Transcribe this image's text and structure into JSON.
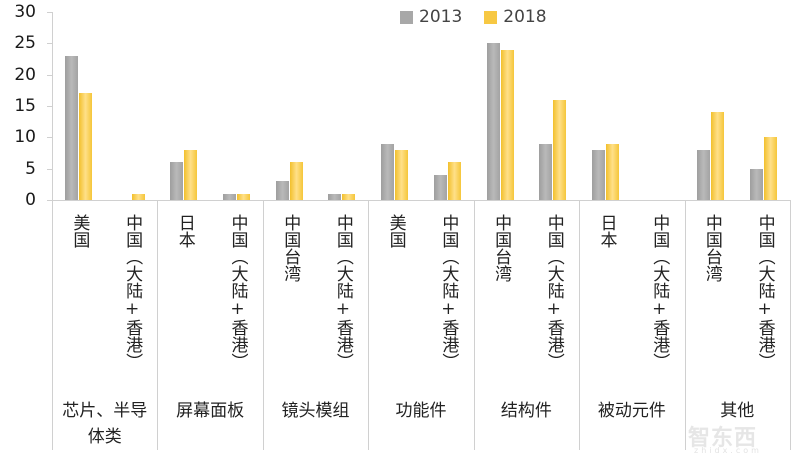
{
  "chart_data": {
    "type": "bar",
    "title": "",
    "xlabel": "",
    "ylabel": "",
    "ylim": [
      0,
      30
    ],
    "yticks": [
      0,
      5,
      10,
      15,
      20,
      25,
      30
    ],
    "grid": false,
    "legend_position": "top",
    "groups": [
      {
        "name": "芯片、半导体类",
        "categories": [
          "美国",
          "中国（大陆+香港）"
        ]
      },
      {
        "name": "屏幕面板",
        "categories": [
          "日本",
          "中国（大陆+香港）"
        ]
      },
      {
        "name": "镜头模组",
        "categories": [
          "中国台湾",
          "中国（大陆+香港）"
        ]
      },
      {
        "name": "功能件",
        "categories": [
          "美国",
          "中国（大陆+香港）"
        ]
      },
      {
        "name": "结构件",
        "categories": [
          "中国台湾",
          "中国（大陆+香港）"
        ]
      },
      {
        "name": "被动元件",
        "categories": [
          "日本",
          "中国（大陆+香港）"
        ]
      },
      {
        "name": "其他",
        "categories": [
          "中国台湾",
          "中国（大陆+香港）"
        ]
      }
    ],
    "categories": [
      "芯片、半导体类 / 美国",
      "芯片、半导体类 / 中国（大陆+香港）",
      "屏幕面板 / 日本",
      "屏幕面板 / 中国（大陆+香港）",
      "镜头模组 / 中国台湾",
      "镜头模组 / 中国（大陆+香港）",
      "功能件 / 美国",
      "功能件 / 中国（大陆+香港）",
      "结构件 / 中国台湾",
      "结构件 / 中国（大陆+香港）",
      "被动元件 / 日本",
      "被动元件 / 中国（大陆+香港）",
      "其他 / 中国台湾",
      "其他 / 中国（大陆+香港）"
    ],
    "series": [
      {
        "name": "2013",
        "color": "#a8a8a8",
        "values": [
          23,
          0,
          6,
          1,
          3,
          1,
          9,
          4,
          25,
          9,
          8,
          0,
          8,
          5
        ]
      },
      {
        "name": "2018",
        "color": "#f7c843",
        "values": [
          17,
          1,
          8,
          1,
          6,
          1,
          8,
          6,
          24,
          16,
          9,
          0,
          14,
          10
        ]
      }
    ]
  },
  "legend": {
    "items": [
      "2013",
      "2018"
    ]
  },
  "group_labels": [
    [
      "芯片、半导",
      "体类"
    ],
    [
      "屏幕面板"
    ],
    [
      "镜头模组"
    ],
    [
      "功能件"
    ],
    [
      "结构件"
    ],
    [
      "被动元件"
    ],
    [
      "其他"
    ]
  ],
  "sub_labels": [
    "美国",
    "中国（大陆+香港）",
    "日本",
    "中国（大陆+香港）",
    "中国台湾",
    "中国（大陆+香港）",
    "美国",
    "中国（大陆+香港）",
    "中国台湾",
    "中国（大陆+香港）",
    "日本",
    "中国（大陆+香港）",
    "中国台湾",
    "中国（大陆+香港）"
  ],
  "watermark": {
    "text": "智东西",
    "sub": "zhidx.com"
  }
}
